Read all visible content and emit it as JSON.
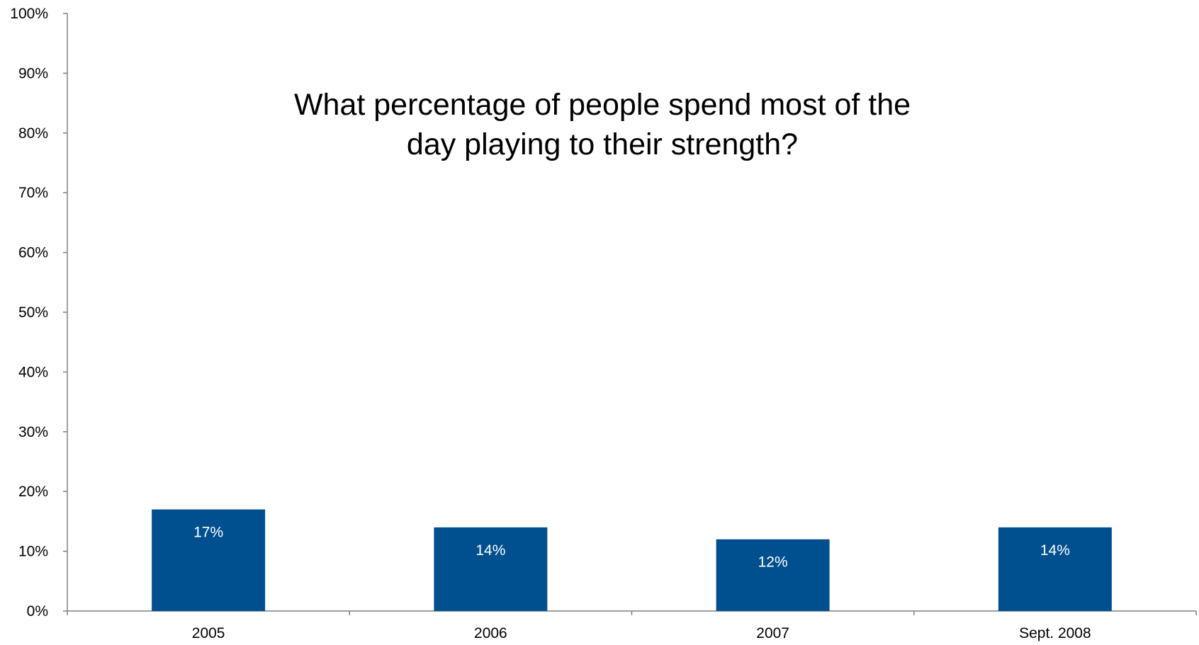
{
  "chart_data": {
    "type": "bar",
    "title": "What percentage of people spend most of the\nday playing to their strength?",
    "xlabel": "",
    "ylabel": "",
    "categories": [
      "2005",
      "2006",
      "2007",
      "Sept. 2008"
    ],
    "values": [
      17,
      14,
      12,
      14
    ],
    "data_labels": [
      "17%",
      "14%",
      "12%",
      "14%"
    ],
    "ylim": [
      0,
      100
    ],
    "yticks": [
      0,
      10,
      20,
      30,
      40,
      50,
      60,
      70,
      80,
      90,
      100
    ],
    "ytick_labels": [
      "0%",
      "10%",
      "20%",
      "30%",
      "40%",
      "50%",
      "60%",
      "70%",
      "80%",
      "90%",
      "100%"
    ],
    "bar_color": "#00508F",
    "axis_color": "#808080",
    "grid": false,
    "legend": "none"
  }
}
